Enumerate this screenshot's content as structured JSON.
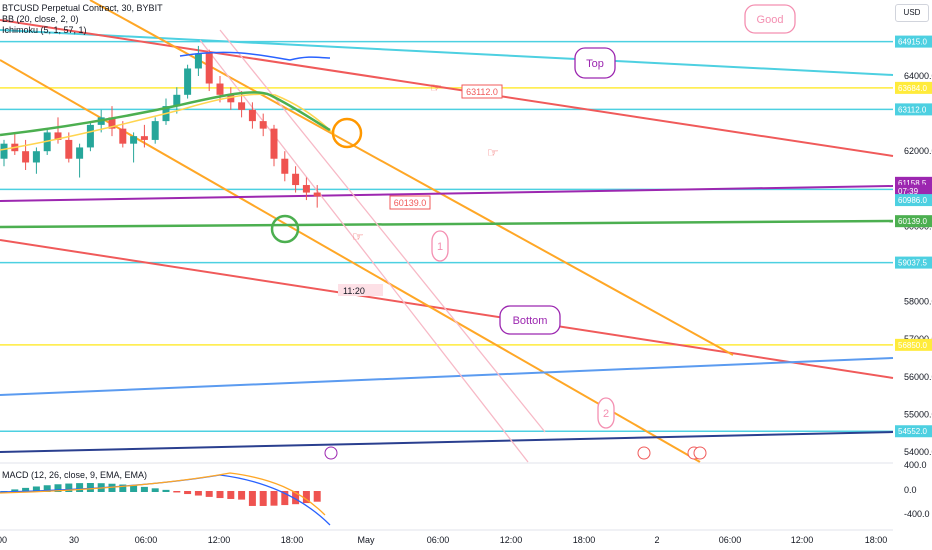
{
  "header": {
    "symbol": "BTCUSD Perpetual Contract, 30, BYBIT",
    "indicator_bb": "BB (20, close, 2, 0)",
    "indicator_ichimoku": "Ichimoku (5, 1, 57, 1)",
    "currency": "USD"
  },
  "macd": {
    "label": "MACD (12, 26, close, 9, EMA, EMA)",
    "ticks": [
      "400.0",
      "0.0",
      "-400.0"
    ]
  },
  "annotations": {
    "good": "Good",
    "top": "Top",
    "bottom": "Bottom",
    "one": "1",
    "two": "2",
    "time_label": "11:20"
  },
  "colors": {
    "cyan": "#4dd0e1",
    "red": "#f05a5a",
    "orange": "#ffa726",
    "yellow": "#ffeb3b",
    "green": "#4caf50",
    "purple": "#9c27b0",
    "blue": "#5b9bf0",
    "navy": "#2a3f8f",
    "pink": "#f7b9c6",
    "candle_up": "#26a69a",
    "candle_down": "#ef5350"
  },
  "chart_data": {
    "type": "line",
    "title": "BTCUSD Perpetual Contract, 30, BYBIT",
    "ylim": [
      53800,
      65300
    ],
    "y_ticks": [
      54000,
      55000,
      56000,
      57000,
      58000,
      60000,
      62000,
      64000
    ],
    "x_ticks": [
      "00",
      "30",
      "06:00",
      "12:00",
      "18:00",
      "May",
      "06:00",
      "12:00",
      "18:00",
      "2",
      "06:00",
      "12:00",
      "18:00"
    ],
    "price_labels": [
      {
        "value": "64915.0",
        "price": 64915,
        "color": "#4dd0e1"
      },
      {
        "value": "63684.0",
        "price": 63684,
        "color": "#ffeb3b"
      },
      {
        "value": "63112.0",
        "price": 63112,
        "color": "#4dd0e1"
      },
      {
        "value": "61158.5",
        "price": 61158.5,
        "color": "#9c27b0"
      },
      {
        "value": "07:39",
        "price": 60945,
        "color": "#9c27b0"
      },
      {
        "value": "60986.0",
        "price": 60700,
        "color": "#4dd0e1"
      },
      {
        "value": "60139.0",
        "price": 60139,
        "color": "#4caf50"
      },
      {
        "value": "59037.5",
        "price": 59037.5,
        "color": "#4dd0e1"
      },
      {
        "value": "56850.0",
        "price": 56850,
        "color": "#ffeb3b"
      },
      {
        "value": "54552.0",
        "price": 54552,
        "color": "#4dd0e1"
      }
    ],
    "horizontal_levels": [
      {
        "price": 64915,
        "color": "#4dd0e1"
      },
      {
        "price": 63684,
        "color": "#ffeb3b"
      },
      {
        "price": 63112,
        "color": "#4dd0e1"
      },
      {
        "price": 60986,
        "color": "#4dd0e1"
      },
      {
        "price": 59037.5,
        "color": "#4dd0e1"
      },
      {
        "price": 56850,
        "color": "#ffeb3b"
      },
      {
        "price": 54552,
        "color": "#4dd0e1"
      }
    ],
    "callouts": [
      {
        "text": "63112.0",
        "price": 63112
      },
      {
        "text": "60139.0",
        "price": 60139
      }
    ]
  }
}
